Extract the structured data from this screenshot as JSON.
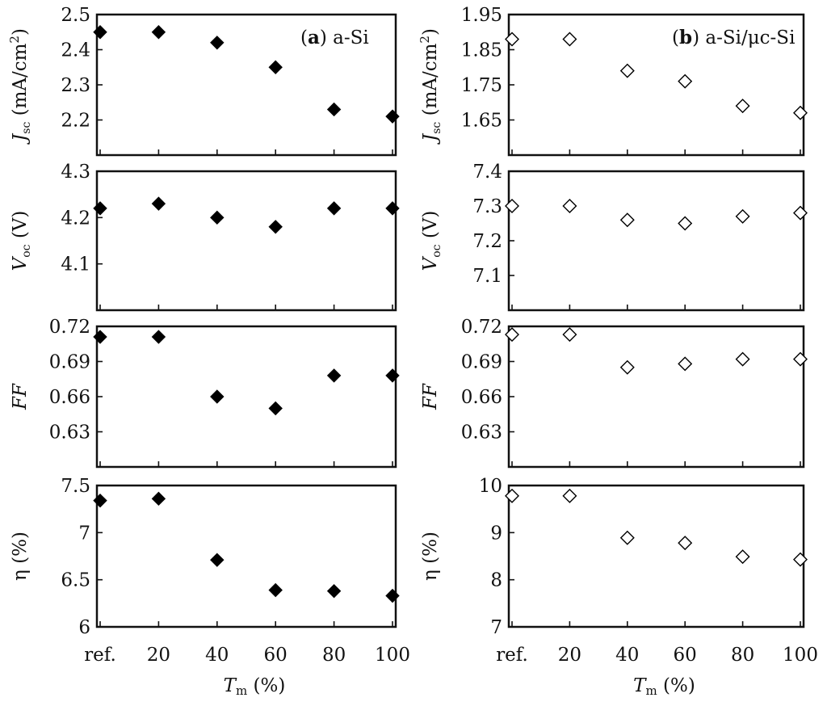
{
  "chart_data": [
    {
      "type": "scatter",
      "panel": "a",
      "annotation": "a",
      "annotation_rest": ") a-Si",
      "ylabel_main": "J",
      "ylabel_sub": "sc",
      "ylabel_rest": " (mA/cm",
      "ylabel_sup": "2",
      "ylabel_close": ")",
      "ylim": [
        2.1,
        2.5
      ],
      "yticks": [
        "2.2",
        "2.3",
        "2.4",
        "2.5"
      ],
      "ytick_values": [
        2.2,
        2.3,
        2.4,
        2.5
      ],
      "marker": "filled-diamond",
      "x": [
        0,
        20,
        40,
        60,
        80,
        100
      ],
      "y": [
        2.45,
        2.45,
        2.42,
        2.35,
        2.23,
        2.21
      ]
    },
    {
      "type": "scatter",
      "panel": "a",
      "ylabel_main": "V",
      "ylabel_sub": "oc",
      "ylabel_rest": " (V)",
      "ylim": [
        4.0,
        4.3
      ],
      "yticks": [
        "4.1",
        "4.2",
        "4.3"
      ],
      "ytick_values": [
        4.1,
        4.2,
        4.3
      ],
      "marker": "filled-diamond",
      "x": [
        0,
        20,
        40,
        60,
        80,
        100
      ],
      "y": [
        4.22,
        4.23,
        4.2,
        4.18,
        4.22,
        4.22
      ]
    },
    {
      "type": "scatter",
      "panel": "a",
      "ylabel_main": "FF",
      "ylim": [
        0.6,
        0.72
      ],
      "yticks": [
        "0.63",
        "0.66",
        "0.69",
        "0.72"
      ],
      "ytick_values": [
        0.63,
        0.66,
        0.69,
        0.72
      ],
      "marker": "filled-diamond",
      "x": [
        0,
        20,
        40,
        60,
        80,
        100
      ],
      "y": [
        0.711,
        0.711,
        0.66,
        0.65,
        0.678,
        0.678
      ]
    },
    {
      "type": "scatter",
      "panel": "a",
      "ylabel_main": "η (%)",
      "ylim": [
        6.0,
        7.5
      ],
      "yticks": [
        "6",
        "6.5",
        "7",
        "7.5"
      ],
      "ytick_values": [
        6.0,
        6.5,
        7.0,
        7.5
      ],
      "marker": "filled-diamond",
      "x": [
        0,
        20,
        40,
        60,
        80,
        100
      ],
      "y": [
        7.34,
        7.36,
        6.71,
        6.39,
        6.38,
        6.33
      ],
      "xticks": [
        "ref.",
        "20",
        "40",
        "60",
        "80",
        "100"
      ],
      "xlabel_main": "T",
      "xlabel_sub": "m",
      "xlabel_rest": " (%)"
    },
    {
      "type": "scatter",
      "panel": "b",
      "annotation": "b",
      "annotation_rest": ") a-Si/μc-Si",
      "ylabel_main": "J",
      "ylabel_sub": "sc",
      "ylabel_rest": " (mA/cm",
      "ylabel_sup": "2",
      "ylabel_close": ")",
      "ylim": [
        1.55,
        1.95
      ],
      "yticks": [
        "1.65",
        "1.75",
        "1.85",
        "1.95"
      ],
      "ytick_values": [
        1.65,
        1.75,
        1.85,
        1.95
      ],
      "marker": "open-diamond",
      "x": [
        0,
        20,
        40,
        60,
        80,
        100
      ],
      "y": [
        1.88,
        1.88,
        1.79,
        1.76,
        1.69,
        1.67
      ]
    },
    {
      "type": "scatter",
      "panel": "b",
      "ylabel_main": "V",
      "ylabel_sub": "oc",
      "ylabel_rest": " (V)",
      "ylim": [
        7.0,
        7.4
      ],
      "yticks": [
        "7.1",
        "7.2",
        "7.3",
        "7.4"
      ],
      "ytick_values": [
        7.1,
        7.2,
        7.3,
        7.4
      ],
      "marker": "open-diamond",
      "x": [
        0,
        20,
        40,
        60,
        80,
        100
      ],
      "y": [
        7.3,
        7.3,
        7.26,
        7.25,
        7.27,
        7.28
      ]
    },
    {
      "type": "scatter",
      "panel": "b",
      "ylabel_main": "FF",
      "ylim": [
        0.6,
        0.72
      ],
      "yticks": [
        "0.63",
        "0.66",
        "0.69",
        "0.72"
      ],
      "ytick_values": [
        0.63,
        0.66,
        0.69,
        0.72
      ],
      "marker": "open-diamond",
      "x": [
        0,
        20,
        40,
        60,
        80,
        100
      ],
      "y": [
        0.713,
        0.713,
        0.685,
        0.688,
        0.692,
        0.692
      ]
    },
    {
      "type": "scatter",
      "panel": "b",
      "ylabel_main": "η (%)",
      "ylim": [
        7.0,
        10.0
      ],
      "yticks": [
        "7",
        "8",
        "9",
        "10"
      ],
      "ytick_values": [
        7,
        8,
        9,
        10
      ],
      "marker": "open-diamond",
      "x": [
        0,
        20,
        40,
        60,
        80,
        100
      ],
      "y": [
        9.78,
        9.78,
        8.89,
        8.78,
        8.49,
        8.43
      ],
      "xticks": [
        "ref.",
        "20",
        "40",
        "60",
        "80",
        "100"
      ],
      "xlabel_main": "T",
      "xlabel_sub": "m",
      "xlabel_rest": " (%)"
    }
  ]
}
